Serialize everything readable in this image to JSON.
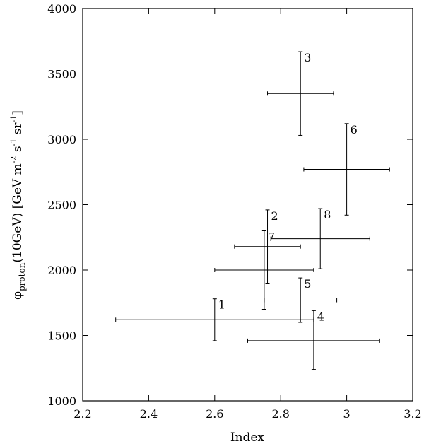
{
  "chart_data": {
    "type": "scatter",
    "title": "",
    "xlabel": "Index",
    "ylabel": {
      "main": "φ",
      "subscript": "proton",
      "rest1": "(10GeV) [GeV m",
      "sup1": "-2",
      "rest2": " s",
      "sup2": "-1",
      "rest3": " sr",
      "sup3": "-1",
      "rest4": "]"
    },
    "xlim": [
      2.2,
      3.2
    ],
    "ylim": [
      1000,
      4000
    ],
    "xticks": [
      2.2,
      2.4,
      2.6,
      2.8,
      3.0,
      3.2
    ],
    "xtick_labels": [
      "2.2",
      "2.4",
      "2.6",
      "2.8",
      "3",
      "3.2"
    ],
    "yticks": [
      1000,
      1500,
      2000,
      2500,
      3000,
      3500,
      4000
    ],
    "ytick_labels": [
      "1000",
      "1500",
      "2000",
      "2500",
      "3000",
      "3500",
      "4000"
    ],
    "grid": false,
    "points": [
      {
        "label": "1",
        "x": 2.6,
        "y": 1620,
        "xerr": [
          2.3,
          2.9
        ],
        "yerr": [
          1460,
          1780
        ]
      },
      {
        "label": "2",
        "x": 2.76,
        "y": 2180,
        "xerr": [
          2.66,
          2.86
        ],
        "yerr": [
          1900,
          2460
        ]
      },
      {
        "label": "3",
        "x": 2.86,
        "y": 3350,
        "xerr": [
          2.76,
          2.96
        ],
        "yerr": [
          3030,
          3670
        ]
      },
      {
        "label": "4",
        "x": 2.9,
        "y": 1460,
        "xerr": [
          2.7,
          3.1
        ],
        "yerr": [
          1240,
          1690
        ]
      },
      {
        "label": "5",
        "x": 2.86,
        "y": 1770,
        "xerr": [
          2.75,
          2.97
        ],
        "yerr": [
          1600,
          1940
        ]
      },
      {
        "label": "6",
        "x": 3.0,
        "y": 2770,
        "xerr": [
          2.87,
          3.13
        ],
        "yerr": [
          2420,
          3120
        ]
      },
      {
        "label": "7",
        "x": 2.75,
        "y": 2000,
        "xerr": [
          2.6,
          2.9
        ],
        "yerr": [
          1700,
          2300
        ]
      },
      {
        "label": "8",
        "x": 2.92,
        "y": 2240,
        "xerr": [
          2.77,
          3.07
        ],
        "yerr": [
          2010,
          2470
        ]
      }
    ]
  }
}
